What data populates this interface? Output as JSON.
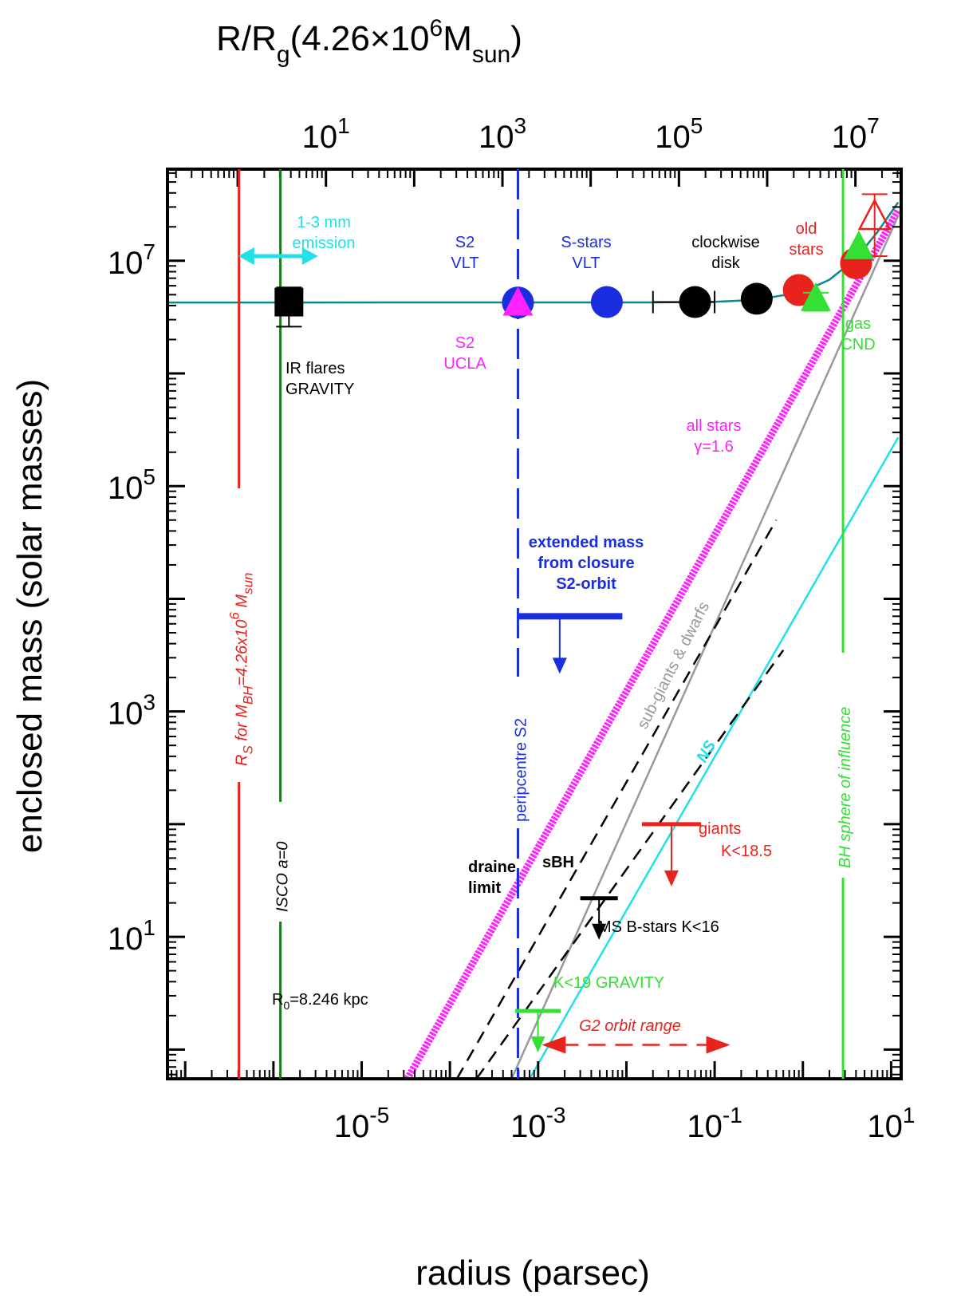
{
  "chart_data": {
    "type": "scatter",
    "xlabel": "radius (parsec)",
    "ylabel": "enclosed mass (solar masses)",
    "top_xlabel": "R/Rg(4.26×10^6 Msun)",
    "x_scale": "log",
    "y_scale": "log",
    "xlim": [
      6.3e-08,
      13
    ],
    "ylim": [
      0.55,
      65000000.0
    ],
    "top_xlim": [
      0.16,
      33000000.0
    ],
    "x_ticks": [
      {
        "v": 1e-05,
        "base": "10",
        "exp": "-5"
      },
      {
        "v": 0.001,
        "base": "10",
        "exp": "-3"
      },
      {
        "v": 0.1,
        "base": "10",
        "exp": "-1"
      },
      {
        "v": 10.0,
        "base": "10",
        "exp": "1"
      }
    ],
    "y_ticks": [
      {
        "v": 10.0,
        "base": "10",
        "exp": "1"
      },
      {
        "v": 1000.0,
        "base": "10",
        "exp": "3"
      },
      {
        "v": 100000.0,
        "base": "10",
        "exp": "5"
      },
      {
        "v": 10000000.0,
        "base": "10",
        "exp": "7"
      }
    ],
    "top_ticks": [
      {
        "v": 10.0,
        "base": "10",
        "exp": "1"
      },
      {
        "v": 1000.0,
        "base": "10",
        "exp": "3"
      },
      {
        "v": 100000.0,
        "base": "10",
        "exp": "5"
      },
      {
        "v": 10000000.0,
        "base": "10",
        "exp": "7"
      }
    ],
    "vertical_lines": [
      {
        "name": "RS for MBH=4.26x10^6 Msun",
        "x": 4.07e-07,
        "color": "#e8221c",
        "label_lines": [
          "R",
          "S",
          " for M",
          "BH",
          "=4.26x10",
          "6",
          "  M",
          "sun"
        ]
      },
      {
        "name": "ISCO a=0",
        "x": 1.2e-06,
        "color": "#1a7a1a",
        "label": "ISCO a=0"
      },
      {
        "name": "peripcentre S2",
        "x": 0.00059,
        "color": "#1a2ee0",
        "label": "peripcentre S2"
      },
      {
        "name": "BH sphere of influence",
        "x": 2.85,
        "color": "#33e033",
        "label": "BH sphere of influence"
      }
    ],
    "series": [
      {
        "name": "all stars γ=1.6",
        "color": "#ff22ff",
        "style": "thick-dotted",
        "x": [
          3.3e-05,
          12
        ],
        "y": [
          0.55,
          28000000.0
        ]
      },
      {
        "name": "sub-giants & dwarfs",
        "color": "#999999",
        "style": "solid",
        "x": [
          0.0005,
          12
        ],
        "y": [
          0.55,
          25000000.0
        ]
      },
      {
        "name": "NS",
        "color": "#22e0e8",
        "style": "solid",
        "x": [
          0.0008,
          12
        ],
        "y": [
          0.55,
          270000.0
        ]
      },
      {
        "name": "sBH (upper)",
        "color": "#000000",
        "style": "dashed",
        "x": [
          0.00012,
          0.5
        ],
        "y": [
          0.55,
          50000.0
        ]
      },
      {
        "name": "sBH (lower)",
        "color": "#000000",
        "style": "dashed",
        "x": [
          0.0002,
          0.6
        ],
        "y": [
          0.55,
          3500.0
        ]
      },
      {
        "name": "point mass + cluster",
        "color": "#0a8a8a",
        "style": "solid",
        "x": [
          6.3e-08,
          0.02,
          0.1,
          0.3,
          1,
          2,
          4,
          7,
          12
        ],
        "y": [
          4260000.0,
          4270000.0,
          4320000.0,
          4500000.0,
          5300000.0,
          6800000.0,
          10500000.0,
          18000000.0,
          33000000.0
        ]
      }
    ],
    "points": [
      {
        "group": "IR flares GRAVITY",
        "marker": "square",
        "color": "#000000",
        "x": 1.5e-06,
        "y": 4300000.0,
        "yerr": [
          2600000.0,
          5800000.0
        ]
      },
      {
        "group": "S2 VLT",
        "marker": "circle",
        "color": "#1a2ee0",
        "x": 0.00059,
        "y": 4260000.0
      },
      {
        "group": "S2 UCLA",
        "marker": "triangle",
        "color": "#ff22ff",
        "x": 0.00059,
        "y": 4100000.0
      },
      {
        "group": "S-stars VLT",
        "marker": "circle",
        "color": "#1a2ee0",
        "x": 0.006,
        "y": 4300000.0
      },
      {
        "group": "clockwise disk",
        "marker": "circle",
        "color": "#000000",
        "x": 0.06,
        "y": 4300000.0,
        "xerr": [
          0.02,
          0.1
        ]
      },
      {
        "group": "clockwise disk",
        "marker": "circle",
        "color": "#000000",
        "x": 0.3,
        "y": 4600000.0
      },
      {
        "group": "old stars",
        "marker": "circle",
        "color": "#e8221c",
        "x": 0.9,
        "y": 5500000.0
      },
      {
        "group": "old stars",
        "marker": "circle",
        "color": "#e8221c",
        "x": 4.0,
        "y": 9500000.0
      },
      {
        "group": "old stars",
        "marker": "open-triangle",
        "color": "#e8221c",
        "x": 6.5,
        "y": 24000000.0,
        "yerr": [
          11000000.0,
          39000000.0
        ]
      },
      {
        "group": "gas CND",
        "marker": "triangle",
        "color": "#33e033",
        "x": 1.4,
        "y": 4500000.0,
        "yerr": [
          3600000.0,
          5200000.0
        ]
      },
      {
        "group": "gas CND",
        "marker": "triangle",
        "color": "#33e033",
        "x": 4.3,
        "y": 13000000.0
      }
    ],
    "upper_limits": [
      {
        "name": "extended mass from closure S2-orbit",
        "color": "#1a2ee0",
        "x": [
          0.00059,
          0.009
        ],
        "y": 7000.0
      },
      {
        "name": "giants K<18.5",
        "color": "#e8221c",
        "x": [
          0.015,
          0.07
        ],
        "y": 100.0
      },
      {
        "name": "MS B-stars K<16",
        "color": "#000000",
        "x": [
          0.003,
          0.008
        ],
        "y": 22
      },
      {
        "name": "K<19 GRAVITY",
        "color": "#33e033",
        "x": [
          0.00055,
          0.0018
        ],
        "y": 2.2
      }
    ],
    "ranges": [
      {
        "name": "1-3 mm emission",
        "color": "#22e0e8",
        "x": [
          4e-07,
          3.2e-06
        ],
        "y": 11000000.0
      },
      {
        "name": "G2 orbit range",
        "color": "#e8221c",
        "x": [
          0.0011,
          0.15
        ],
        "y": 1.1
      }
    ],
    "annotations": {
      "mm_emission": [
        "1-3 mm",
        "emission"
      ],
      "s2_vlt": [
        "S2",
        "VLT"
      ],
      "s_stars_vlt": [
        "S-stars",
        "VLT"
      ],
      "clockwise_disk": [
        "clockwise",
        "disk"
      ],
      "old_stars": [
        "old",
        "stars"
      ],
      "gas_cnd": [
        "gas",
        "CND"
      ],
      "ir_flares": [
        "IR flares",
        "GRAVITY"
      ],
      "s2_ucla": [
        "S2",
        "UCLA"
      ],
      "all_stars": [
        "all stars",
        "γ=1.6"
      ],
      "extended_mass": [
        "extended mass",
        "from closure",
        "S2-orbit"
      ],
      "sub_giants": "sub-giants & dwarfs",
      "ns": "NS",
      "giants": [
        "giants",
        "K<18.5"
      ],
      "draine": [
        "draine",
        "limit"
      ],
      "sbh": "sBH",
      "ms_b_stars": "MS B-stars K<16",
      "k19_gravity": "K<19 GRAVITY",
      "g2_orbit": "G2 orbit range",
      "r0": [
        "R",
        "0",
        "=8.246 kpc"
      ]
    },
    "grid": false,
    "legend": "none"
  }
}
